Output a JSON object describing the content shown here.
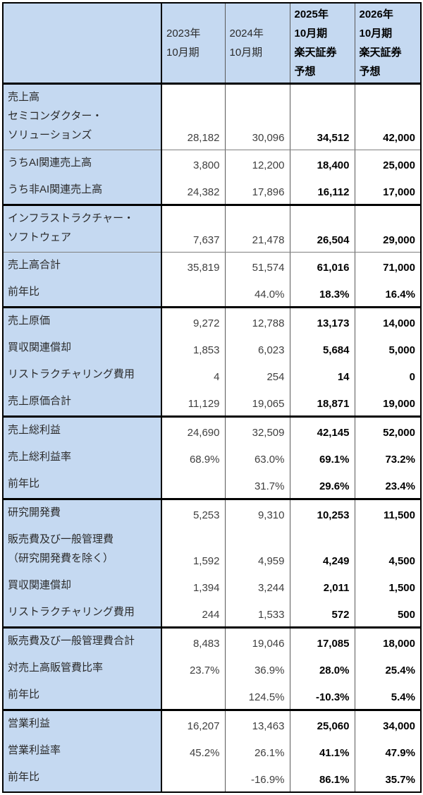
{
  "chart_data": {
    "type": "table",
    "title": "",
    "columns": [
      "",
      "2023年\n10月期",
      "2024年\n10月期",
      "2025年\n10月期\n楽天証券\n予想",
      "2026年\n10月期\n楽天証券\n予想"
    ],
    "layout": {
      "header_bg": "#c5d9f1",
      "label_column_bg": "#c5d9f1",
      "section_border_color": "#000000",
      "sub_divider_color": "#808080",
      "column_line_color": "#595959",
      "regular_text_color": "#3f3f3f",
      "forecast_text_color": "#000000",
      "forecast_columns_bold": true
    },
    "sections": [
      {
        "rows": [
          {
            "label": "売上高\nセミコンダクター・\nソリューションズ",
            "values": [
              "28,182",
              "30,096",
              "34,512",
              "42,000"
            ]
          },
          {
            "label": "うちAI関連売上高",
            "values": [
              "3,800",
              "12,200",
              "18,400",
              "25,000"
            ]
          },
          {
            "label": "うち非AI関連売上高",
            "values": [
              "24,382",
              "17,896",
              "16,112",
              "17,000"
            ]
          }
        ]
      },
      {
        "rows": [
          {
            "label": "インフラストラクチャー・\nソフトウェア",
            "values": [
              "7,637",
              "21,478",
              "26,504",
              "29,000"
            ]
          },
          {
            "label": "売上高合計",
            "values": [
              "35,819",
              "51,574",
              "61,016",
              "71,000"
            ]
          },
          {
            "label": "前年比",
            "values": [
              "",
              "44.0%",
              "18.3%",
              "16.4%"
            ]
          }
        ]
      },
      {
        "rows": [
          {
            "label": "売上原価",
            "values": [
              "9,272",
              "12,788",
              "13,173",
              "14,000"
            ]
          },
          {
            "label": "買収関連償却",
            "values": [
              "1,853",
              "6,023",
              "5,684",
              "5,000"
            ]
          },
          {
            "label": "リストラクチャリング費用",
            "values": [
              "4",
              "254",
              "14",
              "0"
            ]
          },
          {
            "label": "売上原価合計",
            "values": [
              "11,129",
              "19,065",
              "18,871",
              "19,000"
            ]
          }
        ]
      },
      {
        "rows": [
          {
            "label": "売上総利益",
            "values": [
              "24,690",
              "32,509",
              "42,145",
              "52,000"
            ]
          },
          {
            "label": "売上総利益率",
            "values": [
              "68.9%",
              "63.0%",
              "69.1%",
              "73.2%"
            ]
          },
          {
            "label": "前年比",
            "values": [
              "",
              "31.7%",
              "29.6%",
              "23.4%"
            ]
          }
        ]
      },
      {
        "rows": [
          {
            "label": "研究開発費",
            "values": [
              "5,253",
              "9,310",
              "10,253",
              "11,500"
            ]
          },
          {
            "label": "販売費及び一般管理費\n（研究開発費を除く）",
            "values": [
              "1,592",
              "4,959",
              "4,249",
              "4,500"
            ]
          },
          {
            "label": "買収関連償却",
            "values": [
              "1,394",
              "3,244",
              "2,011",
              "1,500"
            ]
          },
          {
            "label": "リストラクチャリング費用",
            "values": [
              "244",
              "1,533",
              "572",
              "500"
            ]
          }
        ]
      },
      {
        "rows": [
          {
            "label": "販売費及び一般管理費合計",
            "values": [
              "8,483",
              "19,046",
              "17,085",
              "18,000"
            ]
          },
          {
            "label": "対売上高販管費比率",
            "values": [
              "23.7%",
              "36.9%",
              "28.0%",
              "25.4%"
            ]
          },
          {
            "label": "前年比",
            "values": [
              "",
              "124.5%",
              "-10.3%",
              "5.4%"
            ]
          }
        ]
      },
      {
        "rows": [
          {
            "label": "営業利益",
            "values": [
              "16,207",
              "13,463",
              "25,060",
              "34,000"
            ]
          },
          {
            "label": "営業利益率",
            "values": [
              "45.2%",
              "26.1%",
              "41.1%",
              "47.9%"
            ]
          },
          {
            "label": "前年比",
            "values": [
              "",
              "-16.9%",
              "86.1%",
              "35.7%"
            ]
          }
        ]
      }
    ]
  }
}
